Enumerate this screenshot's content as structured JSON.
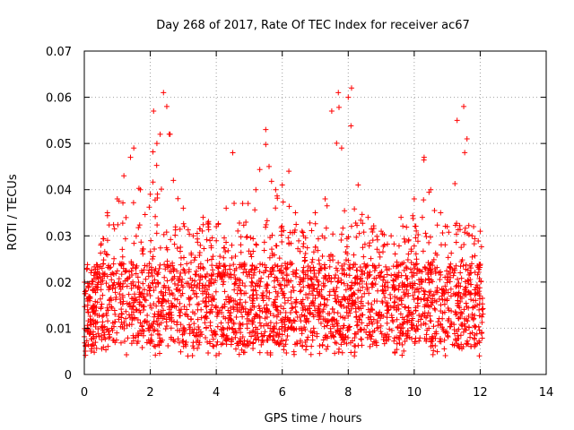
{
  "chart_data": {
    "type": "scatter",
    "title": "Day 268 of 2017, Rate Of TEC Index for receiver ac67",
    "xlabel": "GPS time / hours",
    "ylabel": "ROTI / TECUs",
    "xlim": [
      0,
      14
    ],
    "ylim": [
      0,
      0.07
    ],
    "xticks": [
      "0",
      "2",
      "4",
      "6",
      "8",
      "10",
      "12",
      "14"
    ],
    "yticks": [
      "0",
      "0.01",
      "0.02",
      "0.03",
      "0.04",
      "0.05",
      "0.06",
      "0.07"
    ],
    "grid": true,
    "marker": "+",
    "color": "#ff0000",
    "x_range_of_data": [
      0,
      12.1
    ],
    "series": [
      {
        "x": [
          0.1,
          0.3,
          0.5,
          0.7,
          1.0,
          1.2,
          1.4,
          1.5,
          1.7,
          2.0,
          2.1,
          2.2,
          2.3,
          2.4,
          2.5,
          2.6,
          2.7,
          3.0,
          3.3,
          3.6,
          4.0,
          4.3,
          4.5,
          4.8,
          5.2,
          5.5,
          5.6,
          5.8,
          6.0,
          6.2,
          6.4,
          6.6,
          7.0,
          7.3,
          7.5,
          7.7,
          7.8,
          8.0,
          8.1,
          8.3,
          8.6,
          9.0,
          9.3,
          9.6,
          10.0,
          10.3,
          10.5,
          10.8,
          11.0,
          11.3,
          11.5,
          11.6,
          11.8,
          12.0
        ],
        "y": [
          0.014,
          0.022,
          0.028,
          0.035,
          0.038,
          0.043,
          0.047,
          0.049,
          0.04,
          0.039,
          0.057,
          0.05,
          0.052,
          0.061,
          0.058,
          0.052,
          0.042,
          0.036,
          0.03,
          0.034,
          0.032,
          0.036,
          0.048,
          0.037,
          0.04,
          0.053,
          0.045,
          0.04,
          0.041,
          0.044,
          0.035,
          0.031,
          0.035,
          0.038,
          0.057,
          0.061,
          0.049,
          0.06,
          0.062,
          0.041,
          0.034,
          0.031,
          0.03,
          0.034,
          0.038,
          0.047,
          0.04,
          0.035,
          0.032,
          0.055,
          0.058,
          0.051,
          0.032,
          0.031
        ]
      }
    ]
  }
}
